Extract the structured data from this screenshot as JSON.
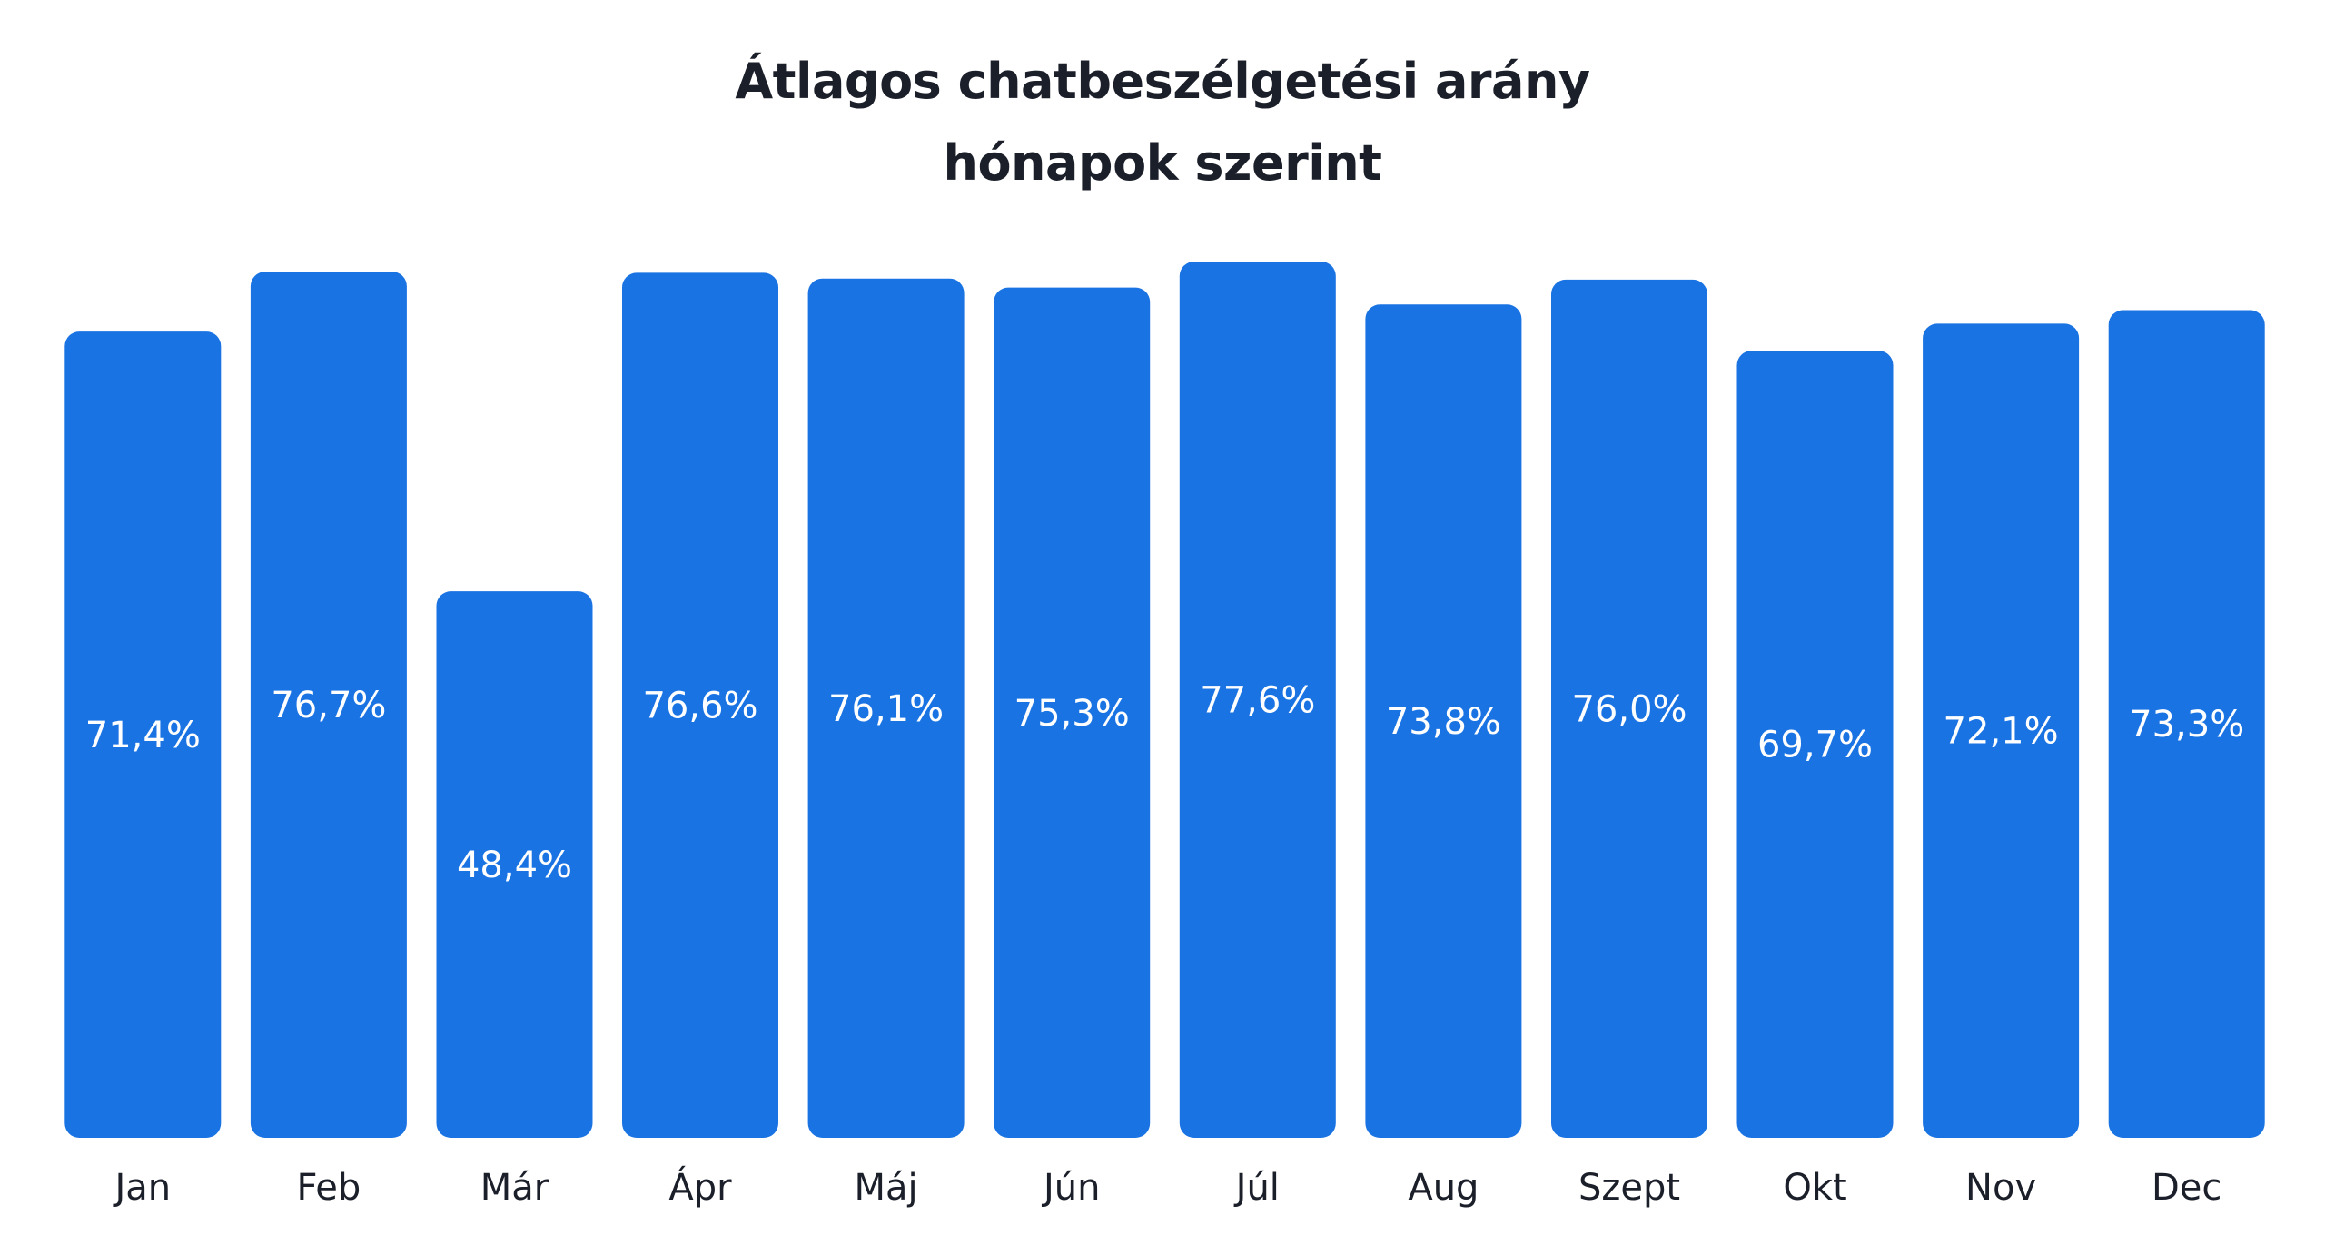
{
  "chart_data": {
    "type": "bar",
    "title": [
      "Átlagos chatbeszélgetési arány",
      "hónapok szerint"
    ],
    "categories": [
      "Jan",
      "Feb",
      "Már",
      "Ápr",
      "Máj",
      "Jún",
      "Júl",
      "Aug",
      "Szept",
      "Okt",
      "Nov",
      "Dec"
    ],
    "values": [
      71.4,
      76.7,
      48.4,
      76.6,
      76.1,
      75.3,
      77.6,
      73.8,
      76.0,
      69.7,
      72.1,
      73.3
    ],
    "value_labels": [
      "71,4%",
      "76,7%",
      "48,4%",
      "76,6%",
      "76,1%",
      "75,3%",
      "77,6%",
      "73,8%",
      "76,0%",
      "69,7%",
      "72,1%",
      "73,3%"
    ],
    "bar_color": "#1a73e3",
    "ylim": [
      0,
      77.6
    ],
    "grid": false,
    "legend": "none"
  }
}
